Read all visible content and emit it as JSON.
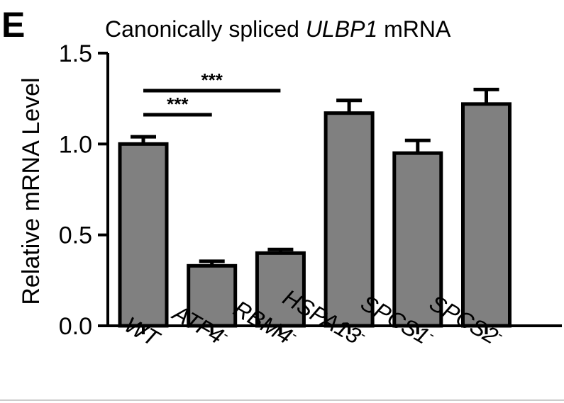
{
  "panel_letter": "E",
  "chart_data": {
    "type": "bar",
    "title_prefix": "Canonically spliced ",
    "title_gene": "ULBP1",
    "title_suffix": " mRNA",
    "ylabel": "Relative mRNA Level",
    "xlabel": "",
    "ylim": [
      0,
      1.5
    ],
    "yticks": [
      "0.0",
      "0.5",
      "1.0",
      "1.5"
    ],
    "ytick_values": [
      0,
      0.5,
      1.0,
      1.5
    ],
    "categories": [
      "WT",
      "ATF4",
      "RBM4",
      "HSPA13",
      "SPCS1",
      "SPCS2"
    ],
    "category_superscripts": [
      "",
      "-",
      "-",
      "-",
      "-",
      "-"
    ],
    "values": [
      1.0,
      0.33,
      0.4,
      1.17,
      0.95,
      1.22
    ],
    "errors": [
      0.04,
      0.025,
      0.02,
      0.07,
      0.07,
      0.08
    ],
    "bar_color": "#808080",
    "significance": [
      {
        "from": "WT",
        "to": "ATF4",
        "label": "***"
      },
      {
        "from": "WT",
        "to": "RBM4",
        "label": "***"
      }
    ]
  }
}
